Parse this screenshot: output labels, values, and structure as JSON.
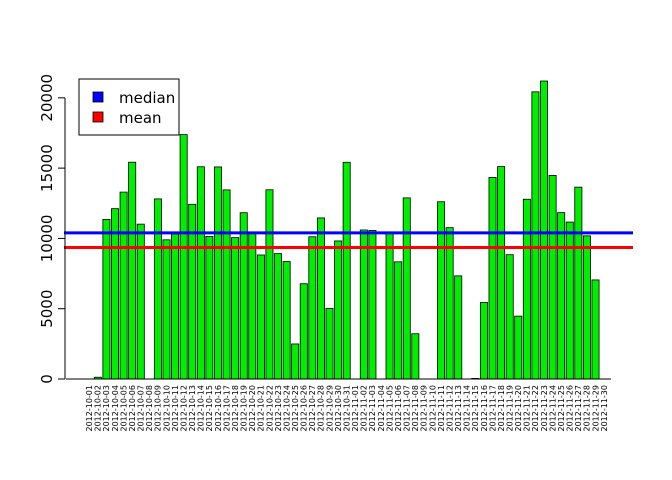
{
  "chart_data": {
    "type": "bar",
    "categories": [
      "2012-10-01",
      "2012-10-02",
      "2012-10-03",
      "2012-10-04",
      "2012-10-05",
      "2012-10-06",
      "2012-10-07",
      "2012-10-08",
      "2012-10-09",
      "2012-10-10",
      "2012-10-11",
      "2012-10-12",
      "2012-10-13",
      "2012-10-14",
      "2012-10-15",
      "2012-10-16",
      "2012-10-17",
      "2012-10-18",
      "2012-10-19",
      "2012-10-20",
      "2012-10-21",
      "2012-10-22",
      "2012-10-23",
      "2012-10-24",
      "2012-10-25",
      "2012-10-26",
      "2012-10-27",
      "2012-10-28",
      "2012-10-29",
      "2012-10-30",
      "2012-10-31",
      "2012-11-01",
      "2012-11-02",
      "2012-11-03",
      "2012-11-04",
      "2012-11-05",
      "2012-11-06",
      "2012-11-07",
      "2012-11-08",
      "2012-11-09",
      "2012-11-10",
      "2012-11-11",
      "2012-11-12",
      "2012-11-13",
      "2012-11-14",
      "2012-11-15",
      "2012-11-16",
      "2012-11-17",
      "2012-11-18",
      "2012-11-19",
      "2012-11-20",
      "2012-11-21",
      "2012-11-22",
      "2012-11-23",
      "2012-11-24",
      "2012-11-25",
      "2012-11-26",
      "2012-11-27",
      "2012-11-28",
      "2012-11-29",
      "2012-11-30"
    ],
    "values": [
      0,
      126,
      11352,
      12116,
      13294,
      15420,
      11015,
      0,
      12811,
      9900,
      10304,
      17382,
      12426,
      15098,
      10139,
      15084,
      13452,
      10056,
      11829,
      10395,
      8821,
      13460,
      8918,
      8355,
      2492,
      6778,
      10119,
      11458,
      5018,
      9819,
      15414,
      0,
      10600,
      10571,
      0,
      10439,
      8334,
      12883,
      3219,
      0,
      0,
      12608,
      10765,
      7336,
      0,
      41,
      5441,
      14339,
      15110,
      8841,
      4472,
      12787,
      20427,
      21194,
      14478,
      11834,
      11162,
      13646,
      10183,
      7047,
      0
    ],
    "ylim": [
      0,
      22000
    ],
    "yticks": [
      0,
      5000,
      10000,
      15000,
      20000
    ],
    "hlines": [
      {
        "name": "median",
        "value": 10395,
        "color": "#0000ff"
      },
      {
        "name": "mean",
        "value": 9354,
        "color": "#ff0000"
      }
    ],
    "bar_color": "#00ee00",
    "legend": {
      "position": "top-left",
      "entries": [
        "median",
        "mean"
      ]
    }
  }
}
